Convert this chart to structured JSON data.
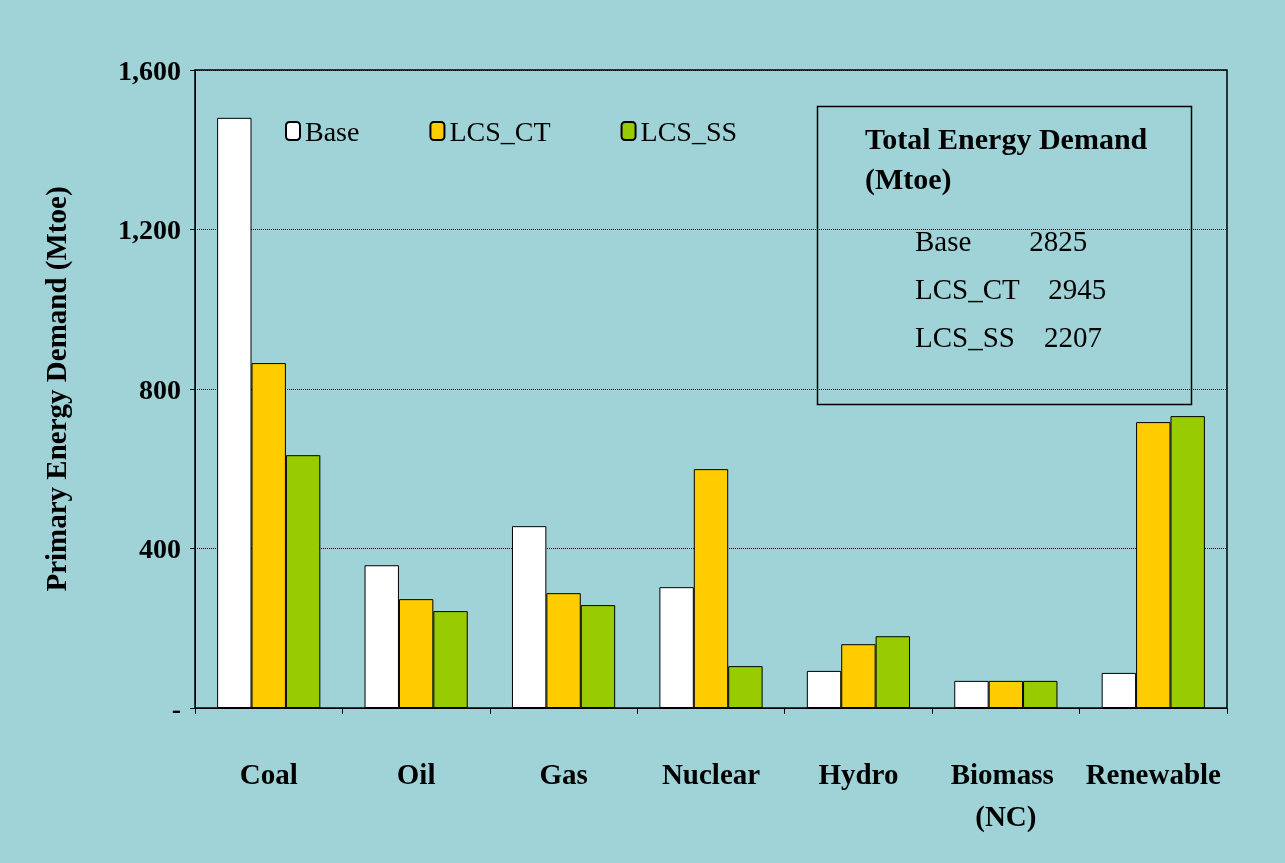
{
  "chart_data": {
    "type": "bar",
    "ylabel": "Primary Energy Demand (Mtoe)",
    "categories": [
      "Coal",
      "Oil",
      "Gas",
      "Nuclear",
      "Hydro",
      "Biomass (NC)",
      "Renewable"
    ],
    "series": [
      {
        "name": "Base",
        "color": "#ffffff",
        "values": [
          1480,
          358,
          456,
          303,
          93,
          68,
          88
        ]
      },
      {
        "name": "LCS_CT",
        "color": "#ffcc00",
        "values": [
          865,
          273,
          288,
          599,
          160,
          68,
          717
        ]
      },
      {
        "name": "LCS_SS",
        "color": "#99cc00",
        "values": [
          634,
          243,
          258,
          105,
          180,
          68,
          732
        ]
      }
    ],
    "ylim": [
      0,
      1600
    ],
    "yticks": [
      {
        "value": 0,
        "label": "-"
      },
      400,
      800,
      {
        "value": 1200,
        "label": "1,200"
      },
      {
        "value": 1600,
        "label": "1,600"
      }
    ],
    "grid": "y",
    "legend": "top left",
    "annotations": [
      "Total Energy Demand (Mtoe)",
      "Base        2825",
      "LCS_CT    2945",
      "LCS_SS    2207"
    ]
  }
}
